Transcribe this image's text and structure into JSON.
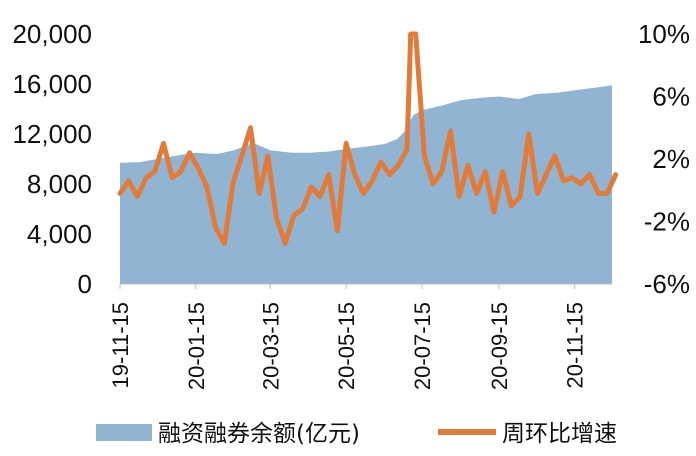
{
  "chart_data": {
    "type": "area+line",
    "title": "",
    "xlabel": "",
    "ylabel": "",
    "y_left_ticks": [
      "0",
      "4,000",
      "8,000",
      "12,000",
      "16,000",
      "20,000"
    ],
    "y_right_ticks": [
      "-6%",
      "-2%",
      "2%",
      "6%",
      "10%"
    ],
    "x_tick_labels": [
      "19-11-15",
      "20-01-15",
      "20-03-15",
      "20-05-15",
      "20-07-15",
      "20-09-15",
      "20-11-15"
    ],
    "ylim_left": [
      0,
      20000
    ],
    "ylim_right": [
      -6,
      10
    ],
    "grid": false,
    "legend_position": "bottom",
    "series": [
      {
        "name": "融资融券余额(亿元)",
        "type": "area",
        "axis": "left",
        "color": "#92b4d3",
        "x": [
          "19-11-15",
          "19-12-01",
          "19-12-15",
          "20-01-01",
          "20-01-15",
          "20-02-01",
          "20-02-15",
          "20-03-01",
          "20-03-15",
          "20-04-01",
          "20-04-15",
          "20-05-01",
          "20-05-15",
          "20-06-01",
          "20-06-15",
          "20-06-25",
          "20-07-01",
          "20-07-08",
          "20-07-15",
          "20-08-01",
          "20-08-15",
          "20-09-01",
          "20-09-15",
          "20-10-01",
          "20-10-15",
          "20-11-01",
          "20-11-15",
          "20-12-01",
          "20-12-15"
        ],
        "values": [
          9700,
          9750,
          10000,
          10300,
          10500,
          10400,
          10700,
          11300,
          10700,
          10500,
          10500,
          10600,
          10800,
          11000,
          11200,
          11600,
          12200,
          13500,
          13900,
          14300,
          14700,
          14900,
          15000,
          14800,
          15200,
          15300,
          15500,
          15700,
          15900
        ]
      },
      {
        "name": "周环比增速",
        "type": "line",
        "axis": "right",
        "color": "#e07b39",
        "x": [
          "19-11-15",
          "19-11-22",
          "19-11-29",
          "19-12-06",
          "19-12-13",
          "19-12-20",
          "19-12-27",
          "20-01-03",
          "20-01-10",
          "20-01-17",
          "20-01-24",
          "20-01-31",
          "20-02-07",
          "20-02-14",
          "20-02-21",
          "20-02-28",
          "20-03-06",
          "20-03-13",
          "20-03-20",
          "20-03-27",
          "20-04-03",
          "20-04-10",
          "20-04-17",
          "20-04-24",
          "20-05-01",
          "20-05-08",
          "20-05-15",
          "20-05-22",
          "20-05-29",
          "20-06-05",
          "20-06-12",
          "20-06-19",
          "20-06-26",
          "20-07-03",
          "20-07-06",
          "20-07-10",
          "20-07-17",
          "20-07-24",
          "20-07-31",
          "20-08-07",
          "20-08-14",
          "20-08-21",
          "20-08-28",
          "20-09-04",
          "20-09-11",
          "20-09-18",
          "20-09-25",
          "20-10-02",
          "20-10-09",
          "20-10-16",
          "20-10-23",
          "20-10-30",
          "20-11-06",
          "20-11-13",
          "20-11-20",
          "20-11-27",
          "20-12-04",
          "20-12-11",
          "20-12-18"
        ],
        "values": [
          -0.2,
          0.6,
          -0.4,
          0.8,
          1.2,
          3.0,
          0.8,
          1.2,
          2.4,
          1.4,
          0.2,
          -2.4,
          -3.4,
          0.5,
          2.2,
          4.0,
          -0.2,
          2.2,
          -1.8,
          -3.4,
          -1.6,
          -1.2,
          0.2,
          -0.4,
          1.0,
          -2.6,
          3.0,
          1.0,
          -0.2,
          0.6,
          1.8,
          1.0,
          1.6,
          2.6,
          10.0,
          10.0,
          2.2,
          0.4,
          1.2,
          3.8,
          -0.4,
          1.6,
          -0.2,
          1.2,
          -1.4,
          1.2,
          -1.0,
          -0.4,
          3.6,
          -0.2,
          1.0,
          2.2,
          0.6,
          0.8,
          0.4,
          1.0,
          -0.2,
          -0.2,
          1.0
        ]
      }
    ]
  }
}
